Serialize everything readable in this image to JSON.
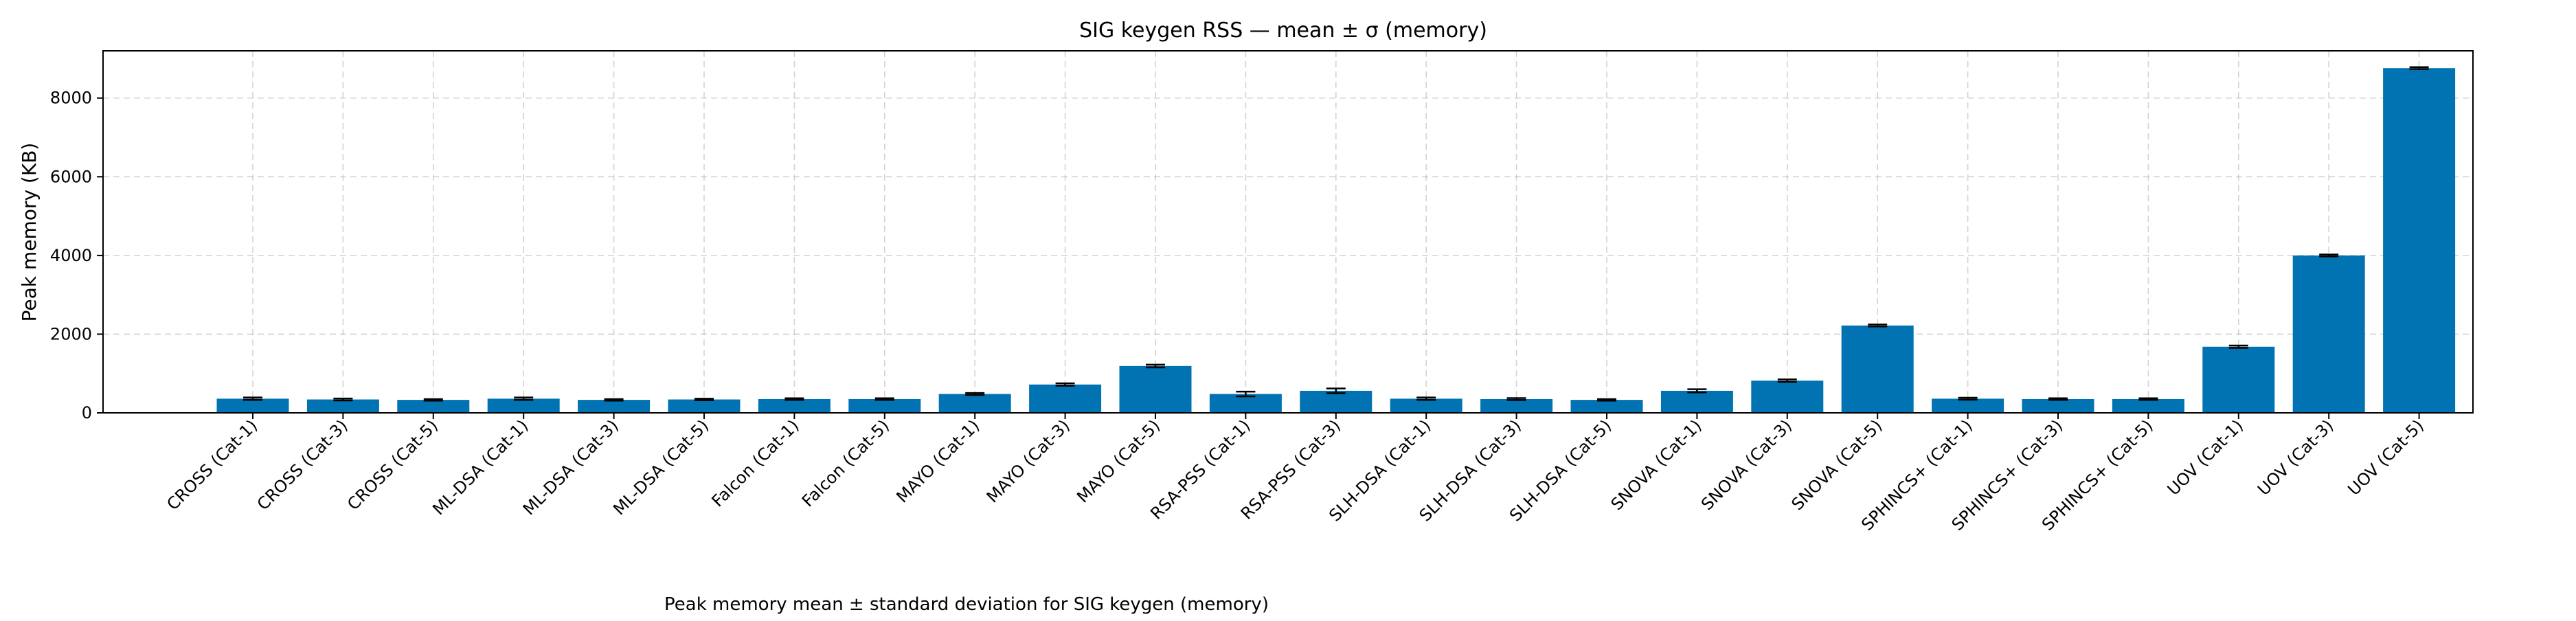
{
  "chart_data": {
    "type": "bar",
    "title": "SIG keygen RSS — mean ± σ (memory)",
    "xlabel": "",
    "ylabel": "Peak memory (KB)",
    "caption": "Peak memory mean ± standard deviation for SIG keygen (memory)",
    "ylim": [
      0,
      9200
    ],
    "yticks": [
      0,
      2000,
      4000,
      6000,
      8000
    ],
    "grid": true,
    "bar_color": "#0173b2",
    "error_color": "#000000",
    "categories": [
      "CROSS (Cat-1)",
      "CROSS (Cat-3)",
      "CROSS (Cat-5)",
      "ML-DSA (Cat-1)",
      "ML-DSA (Cat-3)",
      "ML-DSA (Cat-5)",
      "Falcon (Cat-1)",
      "Falcon (Cat-5)",
      "MAYO (Cat-1)",
      "MAYO (Cat-3)",
      "MAYO (Cat-5)",
      "RSA-PSS (Cat-1)",
      "RSA-PSS (Cat-3)",
      "SLH-DSA (Cat-1)",
      "SLH-DSA (Cat-3)",
      "SLH-DSA (Cat-5)",
      "SNOVA (Cat-1)",
      "SNOVA (Cat-3)",
      "SNOVA (Cat-5)",
      "SPHINCS+ (Cat-1)",
      "SPHINCS+ (Cat-3)",
      "SPHINCS+ (Cat-5)",
      "UOV (Cat-1)",
      "UOV (Cat-3)",
      "UOV (Cat-5)"
    ],
    "values": [
      360,
      340,
      330,
      360,
      330,
      340,
      350,
      350,
      480,
      720,
      1190,
      480,
      560,
      360,
      350,
      330,
      560,
      820,
      2220,
      360,
      350,
      350,
      1680,
      4000,
      8760
    ],
    "errors": [
      30,
      25,
      20,
      30,
      20,
      20,
      20,
      20,
      25,
      30,
      35,
      60,
      60,
      30,
      25,
      20,
      40,
      30,
      25,
      25,
      20,
      20,
      30,
      25,
      25
    ]
  }
}
